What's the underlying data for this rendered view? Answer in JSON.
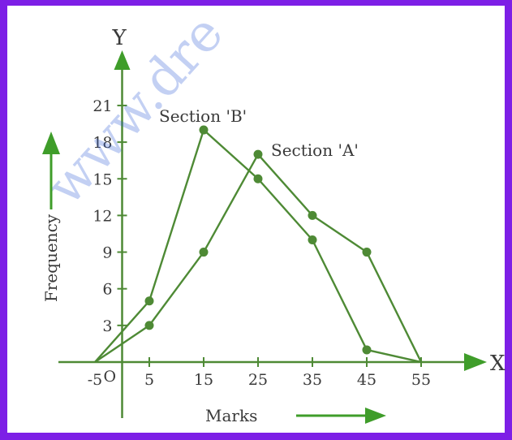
{
  "chart_data": {
    "type": "line",
    "title": "",
    "xlabel": "Marks",
    "ylabel": "Frequency",
    "x_axis_name": "X",
    "y_axis_name": "Y",
    "origin_label": "O",
    "x_ticks": [
      -5,
      5,
      15,
      25,
      35,
      45,
      55
    ],
    "x_tick_labels": [
      "-5",
      "5",
      "15",
      "25",
      "35",
      "45",
      "55"
    ],
    "y_ticks": [
      3,
      6,
      9,
      12,
      15,
      18,
      21
    ],
    "y_tick_labels": [
      "3",
      "6",
      "9",
      "12",
      "15",
      "18",
      "21"
    ],
    "xlim": [
      -10,
      67
    ],
    "ylim": [
      -5,
      26
    ],
    "grid": false,
    "series": [
      {
        "name": "Section 'B'",
        "x": [
          -5,
          5,
          15,
          25,
          35,
          45,
          55
        ],
        "y": [
          0,
          5,
          19,
          15,
          10,
          1,
          0
        ]
      },
      {
        "name": "Section 'A'",
        "x": [
          -5,
          5,
          15,
          25,
          35,
          45,
          55
        ],
        "y": [
          0,
          3,
          9,
          17,
          12,
          9,
          0
        ]
      }
    ],
    "watermark": "www.dre",
    "colors": {
      "frame": "#7d1fe6",
      "line": "#4e8a35",
      "arrow": "#3f9d2a",
      "watermark": "#2a5bd7"
    }
  }
}
